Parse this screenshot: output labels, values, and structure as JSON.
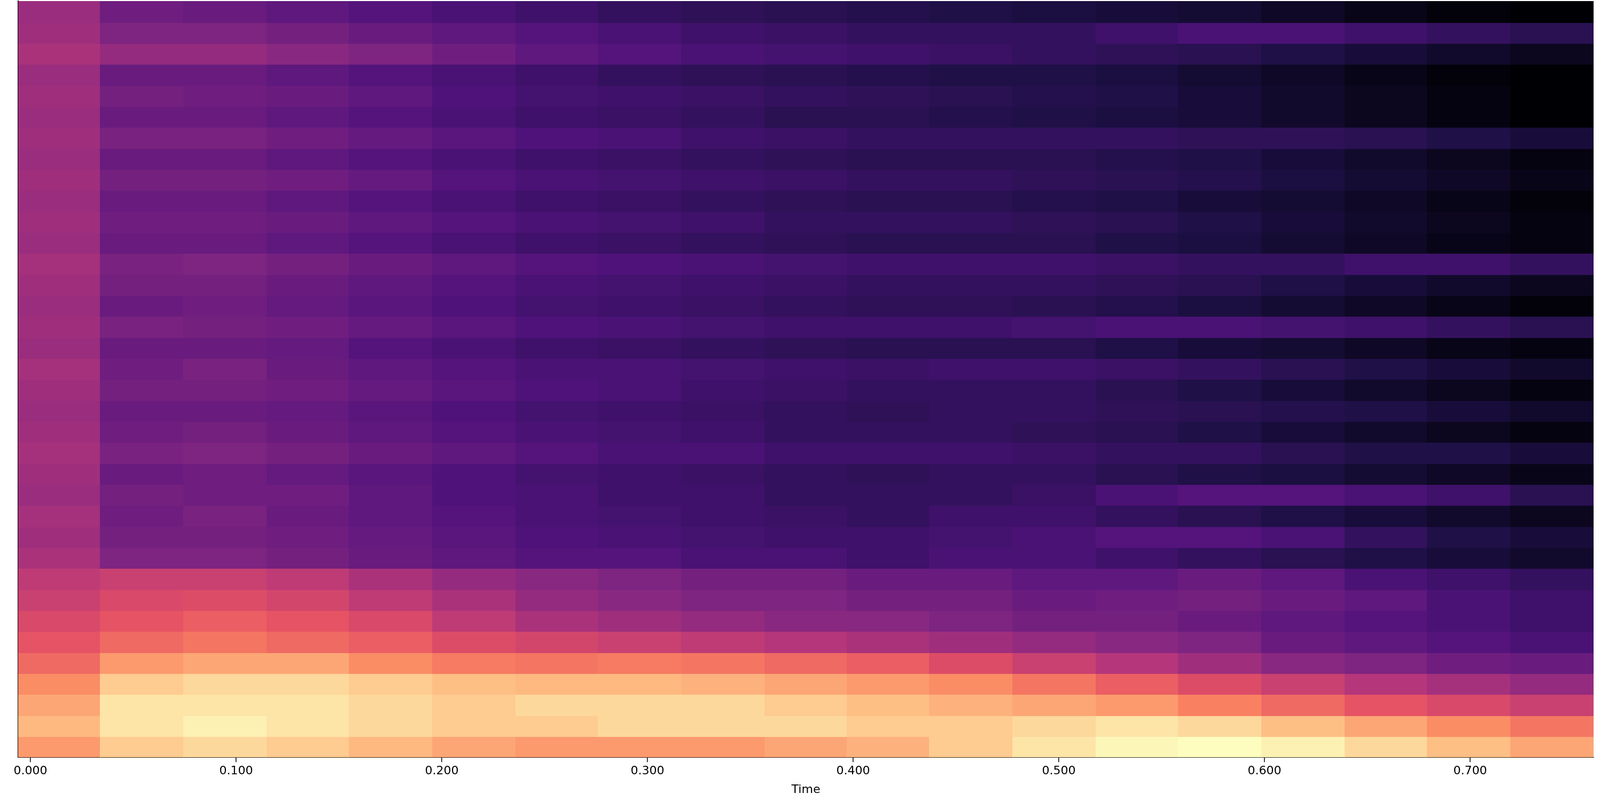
{
  "chart_data": {
    "type": "heatmap",
    "x_label": "Time",
    "color": "magma",
    "grid": false,
    "tick_labels": "x",
    "xlim": [
      -0.006,
      0.76
    ],
    "xticks": [
      {
        "value": 0,
        "label": "0.000"
      },
      {
        "value": 0.1,
        "label": "0.100"
      },
      {
        "value": 0.2,
        "label": "0.200"
      },
      {
        "value": 0.3,
        "label": "0.300"
      },
      {
        "value": 0.4,
        "label": "0.400"
      },
      {
        "value": 0.5,
        "label": "0.500"
      },
      {
        "value": 0.6,
        "label": "0.600"
      },
      {
        "value": 0.7,
        "label": "0.700"
      }
    ],
    "x": [
      0.014,
      0.054,
      0.095,
      0.135,
      0.175,
      0.216,
      0.256,
      0.296,
      0.337,
      0.377,
      0.417,
      0.457,
      0.498,
      0.538,
      0.578,
      0.619,
      0.659,
      0.699,
      0.74
    ],
    "cells": [
      [
        -20,
        -12,
        -10,
        -12,
        -15,
        -18,
        -20,
        -20,
        -20,
        -18,
        -16,
        -12,
        -8,
        -5,
        -4,
        -6,
        -10,
        -14,
        -18
      ],
      [
        -15,
        -8,
        -6,
        -8,
        -10,
        -12,
        -12,
        -10,
        -10,
        -10,
        -12,
        -12,
        -10,
        -8,
        -10,
        -14,
        -18,
        -22,
        -26
      ],
      [
        -18,
        -8,
        -8,
        -8,
        -10,
        -12,
        -10,
        -10,
        -10,
        -12,
        -14,
        -16,
        -18,
        -20,
        -24,
        -28,
        -32,
        -35,
        -38
      ],
      [
        -22,
        -12,
        -10,
        -10,
        -12,
        -14,
        -15,
        -15,
        -16,
        -18,
        -20,
        -22,
        -26,
        -30,
        -34,
        -38,
        -42,
        -45,
        -48
      ],
      [
        -28,
        -20,
        -18,
        -18,
        -22,
        -25,
        -26,
        -25,
        -26,
        -28,
        -30,
        -34,
        -38,
        -42,
        -46,
        -50,
        -52,
        -55,
        -56
      ],
      [
        -32,
        -28,
        -26,
        -28,
        -30,
        -34,
        -36,
        -38,
        -40,
        -42,
        -44,
        -46,
        -48,
        -50,
        -52,
        -56,
        -58,
        -60,
        -62
      ],
      [
        -35,
        -32,
        -30,
        -32,
        -35,
        -40,
        -44,
        -46,
        -48,
        -50,
        -50,
        -52,
        -54,
        -54,
        -56,
        -58,
        -60,
        -62,
        -64
      ],
      [
        -38,
        -35,
        -34,
        -36,
        -40,
        -44,
        -48,
        -50,
        -52,
        -52,
        -54,
        -54,
        -56,
        -55,
        -54,
        -56,
        -58,
        -62,
        -64
      ],
      [
        -40,
        -38,
        -38,
        -40,
        -44,
        -48,
        -50,
        -52,
        -54,
        -54,
        -56,
        -56,
        -58,
        -58,
        -56,
        -58,
        -62,
        -64,
        -66
      ],
      [
        -44,
        -52,
        -52,
        -54,
        -56,
        -58,
        -60,
        -60,
        -62,
        -62,
        -64,
        -62,
        -62,
        -64,
        -66,
        -68,
        -70,
        -72,
        -74
      ],
      [
        -46,
        -54,
        -54,
        -55,
        -57,
        -59,
        -61,
        -62,
        -63,
        -64,
        -64,
        -63,
        -62,
        -60,
        -60,
        -62,
        -66,
        -70,
        -72
      ],
      [
        -45,
        -55,
        -53,
        -56,
        -58,
        -60,
        -62,
        -63,
        -64,
        -65,
        -66,
        -64,
        -64,
        -66,
        -68,
        -70,
        -72,
        -74,
        -76
      ],
      [
        -47,
        -54,
        -55,
        -55,
        -58,
        -61,
        -62,
        -64,
        -64,
        -66,
        -66,
        -66,
        -65,
        -62,
        -60,
        -60,
        -62,
        -64,
        -68
      ],
      [
        -46,
        -56,
        -55,
        -57,
        -59,
        -61,
        -63,
        -64,
        -65,
        -66,
        -67,
        -66,
        -66,
        -68,
        -70,
        -71,
        -73,
        -75,
        -77
      ],
      [
        -45,
        -53,
        -52,
        -54,
        -56,
        -58,
        -60,
        -62,
        -62,
        -64,
        -64,
        -64,
        -65,
        -66,
        -66,
        -68,
        -70,
        -70,
        -72
      ],
      [
        -46,
        -55,
        -54,
        -56,
        -58,
        -60,
        -62,
        -63,
        -64,
        -66,
        -66,
        -66,
        -67,
        -68,
        -70,
        -72,
        -74,
        -76,
        -78
      ],
      [
        -47,
        -56,
        -56,
        -57,
        -59,
        -61,
        -63,
        -64,
        -65,
        -66,
        -67,
        -66,
        -66,
        -67,
        -68,
        -69,
        -70,
        -72,
        -74
      ],
      [
        -46,
        -54,
        -54,
        -55,
        -57,
        -59,
        -61,
        -62,
        -64,
        -65,
        -66,
        -66,
        -66,
        -68,
        -70,
        -72,
        -74,
        -76,
        -78
      ],
      [
        -45,
        -55,
        -53,
        -56,
        -58,
        -60,
        -62,
        -62,
        -63,
        -64,
        -65,
        -64,
        -64,
        -65,
        -66,
        -68,
        -70,
        -72,
        -74
      ],
      [
        -47,
        -56,
        -56,
        -57,
        -60,
        -62,
        -64,
        -65,
        -66,
        -67,
        -68,
        -68,
        -68,
        -70,
        -72,
        -73,
        -75,
        -77,
        -78
      ],
      [
        -46,
        -53,
        -54,
        -55,
        -57,
        -59,
        -61,
        -62,
        -63,
        -64,
        -64,
        -64,
        -63,
        -62,
        -62,
        -63,
        -64,
        -66,
        -68
      ],
      [
        -47,
        -56,
        -55,
        -57,
        -59,
        -61,
        -63,
        -64,
        -65,
        -66,
        -67,
        -67,
        -68,
        -69,
        -71,
        -73,
        -75,
        -77,
        -79
      ],
      [
        -46,
        -54,
        -54,
        -56,
        -58,
        -60,
        -62,
        -63,
        -64,
        -65,
        -66,
        -66,
        -66,
        -67,
        -68,
        -70,
        -72,
        -74,
        -76
      ],
      [
        -45,
        -53,
        -52,
        -54,
        -56,
        -58,
        -60,
        -61,
        -62,
        -63,
        -64,
        -64,
        -64,
        -65,
        -66,
        -66,
        -64,
        -64,
        -66
      ],
      [
        -47,
        -56,
        -56,
        -58,
        -60,
        -62,
        -64,
        -65,
        -66,
        -67,
        -68,
        -68,
        -68,
        -70,
        -71,
        -73,
        -75,
        -77,
        -78
      ],
      [
        -46,
        -55,
        -55,
        -56,
        -58,
        -60,
        -62,
        -63,
        -64,
        -66,
        -66,
        -66,
        -67,
        -68,
        -70,
        -72,
        -74,
        -76,
        -78
      ],
      [
        -47,
        -56,
        -56,
        -58,
        -60,
        -62,
        -64,
        -65,
        -66,
        -67,
        -68,
        -68,
        -69,
        -70,
        -72,
        -73,
        -75,
        -77,
        -79
      ],
      [
        -46,
        -54,
        -54,
        -55,
        -57,
        -60,
        -62,
        -63,
        -64,
        -65,
        -66,
        -66,
        -67,
        -68,
        -69,
        -71,
        -73,
        -75,
        -77
      ],
      [
        -47,
        -56,
        -56,
        -58,
        -60,
        -62,
        -64,
        -65,
        -66,
        -67,
        -68,
        -68,
        -68,
        -69,
        -70,
        -72,
        -74,
        -76,
        -78
      ],
      [
        -46,
        -53,
        -53,
        -55,
        -57,
        -59,
        -61,
        -62,
        -64,
        -65,
        -66,
        -66,
        -66,
        -66,
        -67,
        -67,
        -68,
        -70,
        -72
      ],
      [
        -47,
        -56,
        -56,
        -58,
        -60,
        -62,
        -64,
        -65,
        -66,
        -68,
        -68,
        -69,
        -70,
        -71,
        -72,
        -74,
        -76,
        -78,
        -80
      ],
      [
        -46,
        -54,
        -55,
        -56,
        -58,
        -61,
        -63,
        -64,
        -65,
        -66,
        -67,
        -68,
        -69,
        -70,
        -72,
        -74,
        -76,
        -78,
        -80
      ],
      [
        -47,
        -56,
        -56,
        -58,
        -60,
        -62,
        -64,
        -66,
        -67,
        -68,
        -69,
        -70,
        -70,
        -71,
        -73,
        -75,
        -77,
        -79,
        -80
      ],
      [
        -44,
        -48,
        -48,
        -50,
        -52,
        -55,
        -58,
        -60,
        -62,
        -63,
        -64,
        -65,
        -66,
        -67,
        -68,
        -70,
        -72,
        -74,
        -76
      ],
      [
        -46,
        -52,
        -52,
        -54,
        -56,
        -58,
        -60,
        -62,
        -64,
        -65,
        -66,
        -66,
        -66,
        -64,
        -62,
        -62,
        -64,
        -66,
        -68
      ],
      [
        -47,
        -55,
        -56,
        -58,
        -60,
        -62,
        -64,
        -66,
        -67,
        -68,
        -69,
        -70,
        -71,
        -72,
        -73,
        -75,
        -77,
        -79,
        -80
      ]
    ]
  }
}
